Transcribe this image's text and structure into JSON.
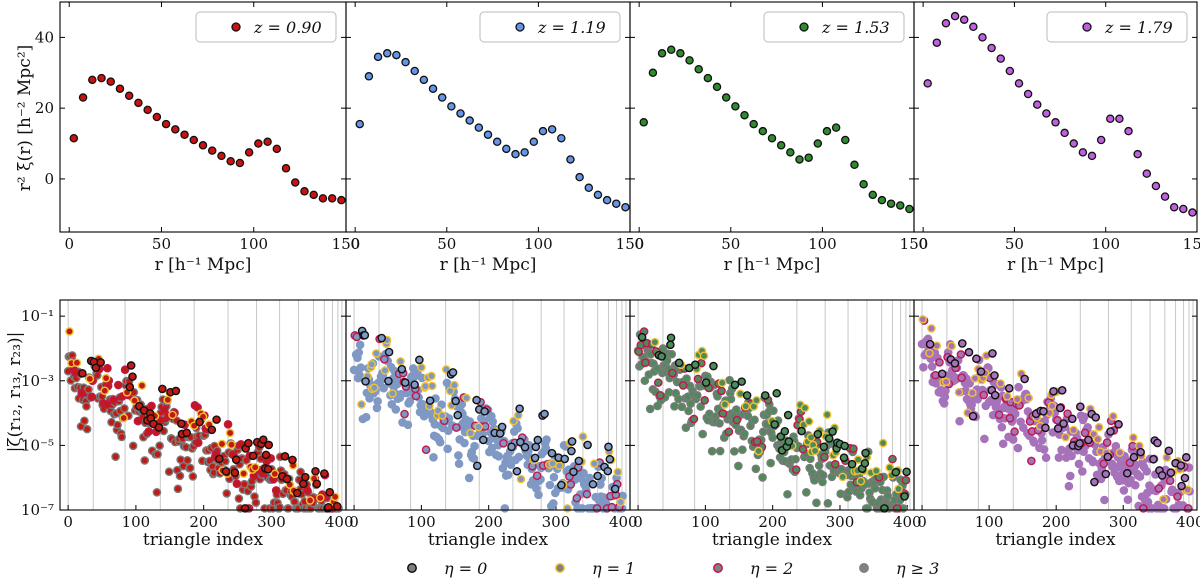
{
  "figure": {
    "top_ylabel": "r² ξ(r) [h⁻² Mpc²]",
    "top_xlabel": "r [h⁻¹ Mpc]",
    "bottom_ylabel": "|ζ(r₁₂, r₁₃, r₂₃)|",
    "bottom_xlabel": "triangle index",
    "top_xticks": [
      "0",
      "50",
      "100",
      "150"
    ],
    "top_yticks": [
      "0",
      "20",
      "40"
    ],
    "bottom_xticks": [
      "0",
      "100",
      "200",
      "300",
      "400"
    ],
    "bottom_yticks": [
      "10⁻⁷",
      "10⁻⁵",
      "10⁻³",
      "10⁻¹"
    ],
    "legend": [
      {
        "label": "η = 0",
        "fill": "#808080",
        "edge": "#111111"
      },
      {
        "label": "η = 1",
        "fill": "#808080",
        "edge": "#f2c230"
      },
      {
        "label": "η = 2",
        "fill": "#808080",
        "edge": "#c0184e"
      },
      {
        "label": "η ≥ 3",
        "fill": "#808080",
        "edge": "#808080"
      }
    ]
  },
  "chart_data": [
    {
      "type": "scatter",
      "panel": "top-1",
      "label": "z = 0.90",
      "color": "#cc1111",
      "xlim": [
        -5,
        150
      ],
      "ylim": [
        -15,
        50
      ],
      "x": [
        2.5,
        7.5,
        12.5,
        17.5,
        22.5,
        27.5,
        32.5,
        37.5,
        42.5,
        47.5,
        52.5,
        57.5,
        62.5,
        67.5,
        72.5,
        77.5,
        82.5,
        87.5,
        92.5,
        97.5,
        102.5,
        107.5,
        112.5,
        117.5,
        122.5,
        127.5,
        132.5,
        137.5,
        142.5,
        147.5
      ],
      "y": [
        11.5,
        23.0,
        28.0,
        28.5,
        27.5,
        25.5,
        23.5,
        21.5,
        19.5,
        17.5,
        15.5,
        14.0,
        12.5,
        11.0,
        9.5,
        8.0,
        6.5,
        5.0,
        4.5,
        7.5,
        10.0,
        10.5,
        8.5,
        3.0,
        -1.0,
        -3.5,
        -4.5,
        -5.5,
        -5.5,
        -6.0
      ]
    },
    {
      "type": "scatter",
      "panel": "top-2",
      "label": "z = 1.19",
      "color": "#6495e6",
      "xlim": [
        -5,
        150
      ],
      "ylim": [
        -15,
        50
      ],
      "x": [
        2.5,
        7.5,
        12.5,
        17.5,
        22.5,
        27.5,
        32.5,
        37.5,
        42.5,
        47.5,
        52.5,
        57.5,
        62.5,
        67.5,
        72.5,
        77.5,
        82.5,
        87.5,
        92.5,
        97.5,
        102.5,
        107.5,
        112.5,
        117.5,
        122.5,
        127.5,
        132.5,
        137.5,
        142.5,
        147.5
      ],
      "y": [
        15.5,
        29.0,
        34.5,
        35.5,
        35.0,
        33.0,
        30.5,
        28.0,
        25.5,
        23.0,
        20.5,
        18.5,
        16.5,
        14.5,
        12.5,
        10.5,
        8.5,
        7.0,
        7.5,
        10.5,
        13.5,
        14.0,
        11.5,
        5.5,
        0.5,
        -2.5,
        -4.5,
        -6.0,
        -7.0,
        -8.0
      ]
    },
    {
      "type": "scatter",
      "panel": "top-3",
      "label": "z = 1.53",
      "color": "#2e8b2e",
      "xlim": [
        -5,
        150
      ],
      "ylim": [
        -15,
        50
      ],
      "x": [
        2.5,
        7.5,
        12.5,
        17.5,
        22.5,
        27.5,
        32.5,
        37.5,
        42.5,
        47.5,
        52.5,
        57.5,
        62.5,
        67.5,
        72.5,
        77.5,
        82.5,
        87.5,
        92.5,
        97.5,
        102.5,
        107.5,
        112.5,
        117.5,
        122.5,
        127.5,
        132.5,
        137.5,
        142.5,
        147.5
      ],
      "y": [
        16.0,
        30.0,
        35.5,
        36.5,
        35.5,
        33.5,
        31.0,
        28.5,
        26.0,
        23.0,
        20.5,
        18.0,
        15.5,
        13.5,
        11.5,
        9.5,
        7.5,
        5.5,
        6.0,
        10.0,
        13.5,
        14.5,
        11.0,
        4.0,
        -1.5,
        -4.5,
        -6.0,
        -7.0,
        -7.5,
        -8.5
      ]
    },
    {
      "type": "scatter",
      "panel": "top-4",
      "label": "z = 1.79",
      "color": "#c060e0",
      "xlim": [
        -5,
        150
      ],
      "ylim": [
        -15,
        50
      ],
      "x": [
        2.5,
        7.5,
        12.5,
        17.5,
        22.5,
        27.5,
        32.5,
        37.5,
        42.5,
        47.5,
        52.5,
        57.5,
        62.5,
        67.5,
        72.5,
        77.5,
        82.5,
        87.5,
        92.5,
        97.5,
        102.5,
        107.5,
        112.5,
        117.5,
        122.5,
        127.5,
        132.5,
        137.5,
        142.5,
        147.5
      ],
      "y": [
        27.0,
        38.5,
        44.0,
        46.0,
        45.0,
        43.0,
        40.0,
        37.0,
        34.0,
        30.5,
        27.0,
        24.0,
        21.0,
        18.5,
        16.0,
        13.0,
        10.0,
        7.5,
        6.5,
        11.0,
        17.0,
        17.0,
        13.5,
        7.0,
        1.5,
        -2.0,
        -5.0,
        -8.0,
        -8.5,
        -9.5
      ]
    },
    {
      "type": "scatter",
      "panel": "bottom",
      "scale": "log",
      "xlim": [
        -12,
        410
      ],
      "ylim_log10": [
        -7,
        -0.5
      ],
      "vlines": [
        0,
        37,
        84,
        136,
        186,
        236,
        278,
        312,
        340,
        362,
        378,
        390,
        398,
        404
      ],
      "panels": [
        {
          "panel": "bottom-1",
          "color": "#c11a14",
          "edge_eta3": "#7a7a7a"
        },
        {
          "panel": "bottom-2",
          "color": "#7f98c4",
          "edge_eta3": "#7f98c4"
        },
        {
          "panel": "bottom-3",
          "color": "#4e8a5a",
          "edge_eta3": "#7a7a7a"
        },
        {
          "panel": "bottom-4",
          "color": "#a672ba",
          "edge_eta3": "#a672ba"
        }
      ]
    }
  ]
}
